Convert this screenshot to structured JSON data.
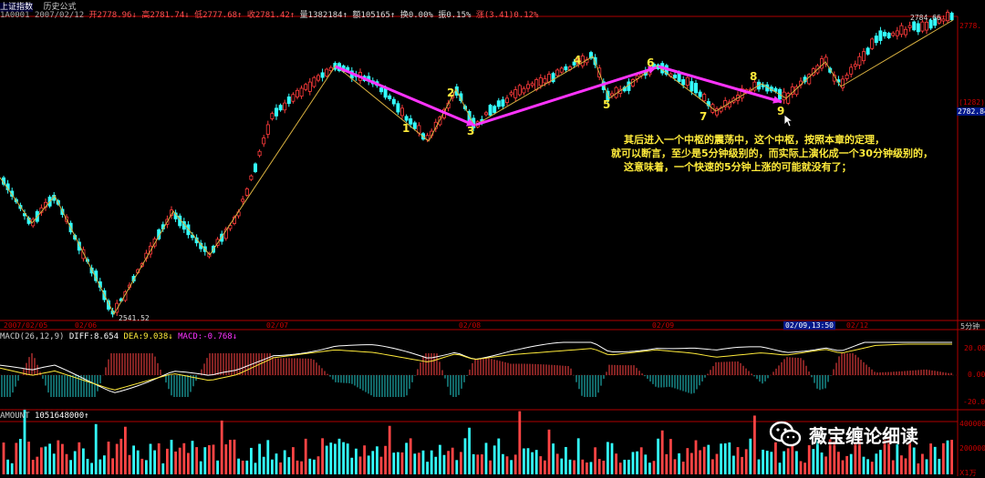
{
  "header": {
    "index_name": "上证指数",
    "period_label": "历史公式",
    "code": "1A0001",
    "date": "2007/02/12",
    "open": "开2778.96",
    "high": "高2781.74",
    "low": "低2777.68",
    "close": "收2781.42",
    "volume": "量1382184",
    "amount": "额105165",
    "turnover": "换0.00%",
    "amplitude": "振0.15%",
    "change": "涨(3.41)0.12%"
  },
  "price_axis": {
    "high_marker": "2784.66",
    "right_label_top": "2778.",
    "right_label_count": "(1282)",
    "right_label_cur": "2782.84",
    "low_marker": "2541.52"
  },
  "dates": [
    "2007/02/05",
    "02/06",
    "02/07",
    "02/08",
    "02/09",
    "02/09,13:50",
    "02/12"
  ],
  "timeframe": "5分钟",
  "macd": {
    "label": "MACD(26,12,9)",
    "diff": "DIFF:8.654",
    "dea": "DEA:9.038",
    "macd": "MACD:-0.768",
    "y_labels": [
      "20.00",
      "0.00",
      "-20.00"
    ]
  },
  "amount": {
    "label": "AMOUNT",
    "value": "1051648000",
    "y_labels": [
      "400000",
      "200000"
    ],
    "unit": "X1万"
  },
  "wave_labels": [
    {
      "text": "1",
      "color": "yellow"
    },
    {
      "text": "2",
      "color": "yellow"
    },
    {
      "text": "3",
      "color": "yellow"
    },
    {
      "text": "4",
      "color": "yellow"
    },
    {
      "text": "5",
      "color": "yellow"
    },
    {
      "text": "6",
      "color": "magenta"
    },
    {
      "text": "7",
      "color": "yellow"
    },
    {
      "text": "8",
      "color": "yellow"
    },
    {
      "text": "9",
      "color": "yellow"
    }
  ],
  "annotation": [
    "其后进入一个中枢的震荡中，这个中枢，按照本章的定理，",
    "就可以断言，至少是5分钟级别的，而实际上演化成一个30分钟级别的，",
    "这意味着，一个快速的5分钟上涨的可能就没有了；"
  ],
  "watermark": "薇宝缠论细读",
  "colors": {
    "up": "#ff3b3b",
    "down": "#33ffff",
    "frame": "#b00000",
    "yellow": "#ffeb3b",
    "magenta": "#ff33ff",
    "white": "#ffffff"
  }
}
